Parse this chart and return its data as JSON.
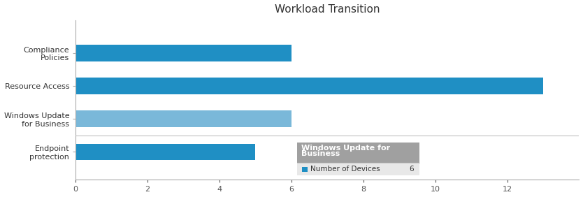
{
  "title": "Workload Transition",
  "categories": [
    "Endpoint\nprotection",
    "Windows Update\nfor Business",
    "Resource Access",
    "Compliance\nPolicies"
  ],
  "values": [
    5,
    6,
    13,
    6
  ],
  "bar_colors": [
    "#1f8fc4",
    "#7ab8d9",
    "#1f8fc4",
    "#1f8fc4"
  ],
  "xlim": [
    0,
    14
  ],
  "xticks": [
    0,
    2,
    4,
    6,
    8,
    10,
    12
  ],
  "background_color": "#ffffff",
  "tooltip_title_line1": "Windows Update for",
  "tooltip_title_line2": "Business",
  "tooltip_label": "Number of Devices",
  "tooltip_value": "6",
  "tooltip_bar_color": "#1f8fc4",
  "tooltip_header_color": "#a0a0a0",
  "tooltip_body_color": "#e8e8e8",
  "bar_height": 0.5,
  "title_fontsize": 11,
  "tick_fontsize": 8,
  "ylabel_fontsize": 8
}
